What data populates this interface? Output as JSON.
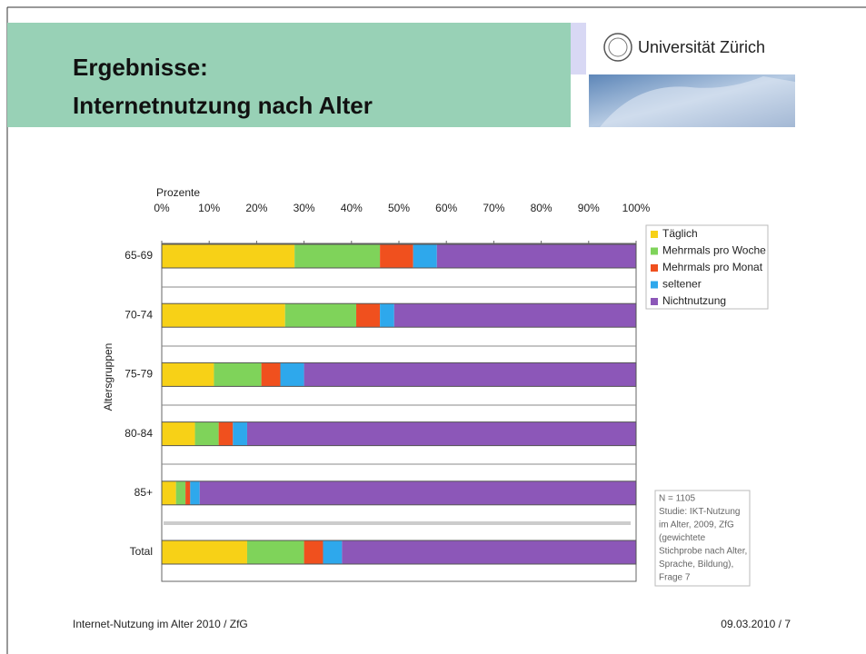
{
  "header": {
    "title_lines": [
      "Ergebnisse:",
      "Internetnutzung nach Alter"
    ],
    "logo": "Universität Zürich"
  },
  "chart_data": {
    "type": "stacked_barh",
    "x_label": "Prozente",
    "y_label": "Altersgruppen",
    "categories": [
      "65-69",
      "70-74",
      "75-79",
      "80-84",
      "85+",
      "Total"
    ],
    "series": [
      {
        "name": "Täglich",
        "color": "#f7d117",
        "values": [
          28,
          26,
          11,
          7,
          3,
          18
        ]
      },
      {
        "name": "Mehrmals pro Woche",
        "color": "#7fd35a",
        "values": [
          18,
          15,
          10,
          5,
          2,
          12
        ]
      },
      {
        "name": "Mehrmals pro Monat",
        "color": "#f0501e",
        "values": [
          7,
          5,
          4,
          3,
          1,
          4
        ]
      },
      {
        "name": "seltener",
        "color": "#2ea8ec",
        "values": [
          5,
          3,
          5,
          3,
          2,
          4
        ]
      },
      {
        "name": "Nichtnutzung",
        "color": "#8c57b8",
        "values": [
          42,
          51,
          70,
          82,
          92,
          62
        ]
      }
    ],
    "xlim": [
      0,
      100
    ],
    "xticks": [
      {
        "value": 0,
        "label": "0%"
      },
      {
        "value": 10,
        "label": "10%"
      },
      {
        "value": 20,
        "label": "20%"
      },
      {
        "value": 30,
        "label": "30%"
      },
      {
        "value": 40,
        "label": "40%"
      },
      {
        "value": 50,
        "label": "50%"
      },
      {
        "value": 60,
        "label": "60%"
      },
      {
        "value": 70,
        "label": "70%"
      },
      {
        "value": 80,
        "label": "80%"
      },
      {
        "value": 90,
        "label": "90%"
      },
      {
        "value": 100,
        "label": "100%"
      }
    ],
    "legend": "right",
    "note_lines": [
      "N = 1105",
      "Studie: IKT-Nutzung",
      "im Alter, 2009, ZfG",
      "(gewichtete",
      "Stichprobe nach Alter,",
      "Sprache, Bildung),",
      "Frage 7"
    ]
  },
  "footer": {
    "left": "Internet-Nutzung im Alter 2010 / ZfG",
    "right": "09.03.2010  /  7"
  }
}
